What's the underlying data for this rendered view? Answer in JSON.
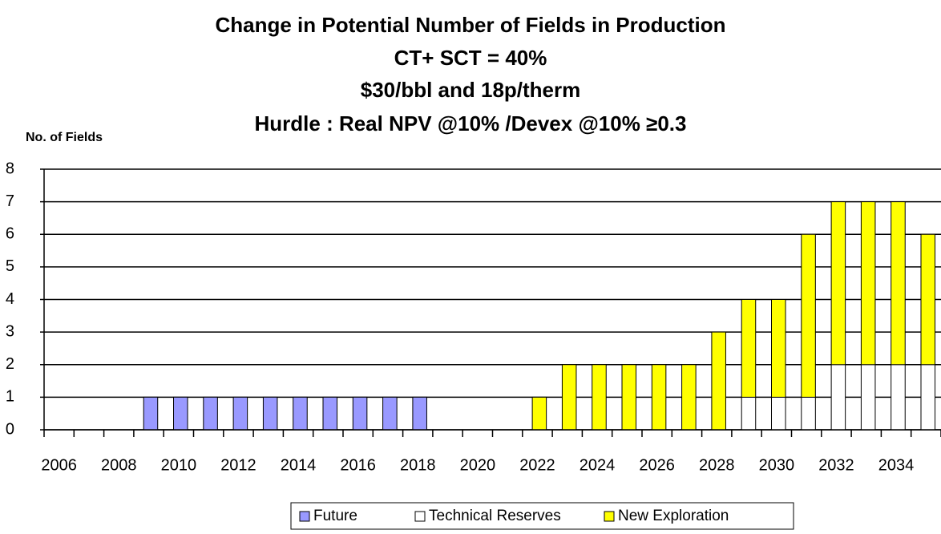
{
  "chart_data": {
    "type": "stacked_bar",
    "title": [
      "Change in Potential Number of Fields in Production",
      "CT+ SCT = 40%",
      "$30/bbl and 18p/therm",
      "Hurdle : Real NPV @10% /Devex @10% ≥0.3"
    ],
    "y_label": "No. of Fields",
    "categories": [
      "2006",
      null,
      "2008",
      null,
      "2010",
      null,
      "2012",
      null,
      "2014",
      null,
      "2016",
      null,
      "2018",
      null,
      "2020",
      null,
      "2022",
      null,
      "2024",
      null,
      "2026",
      null,
      "2028",
      null,
      "2030",
      null,
      "2032",
      null,
      "2034",
      null
    ],
    "series": [
      {
        "name": "Future",
        "color": "#9999ff",
        "values": [
          0,
          0,
          0,
          1,
          1,
          1,
          1,
          1,
          1,
          1,
          1,
          1,
          1,
          0,
          0,
          0,
          0,
          0,
          0,
          0,
          0,
          0,
          0,
          0,
          0,
          0,
          0,
          0,
          0,
          0
        ]
      },
      {
        "name": "Technical Reserves",
        "color": "#ffffff",
        "values": [
          0,
          0,
          0,
          0,
          0,
          0,
          0,
          0,
          0,
          0,
          0,
          0,
          0,
          0,
          0,
          0,
          0,
          0,
          0,
          0,
          0,
          0,
          0,
          1,
          1,
          1,
          2,
          2,
          2,
          2
        ]
      },
      {
        "name": "New Exploration",
        "color": "#ffff00",
        "values": [
          0,
          0,
          0,
          0,
          0,
          0,
          0,
          0,
          0,
          0,
          0,
          0,
          0,
          0,
          0,
          0,
          1,
          2,
          2,
          2,
          2,
          2,
          3,
          3,
          3,
          5,
          5,
          5,
          5,
          4
        ]
      }
    ],
    "ylim": [
      0,
      8
    ],
    "yticks": [
      0,
      1,
      2,
      3,
      4,
      5,
      6,
      7,
      8
    ],
    "grid": true,
    "legend": "bottom"
  }
}
